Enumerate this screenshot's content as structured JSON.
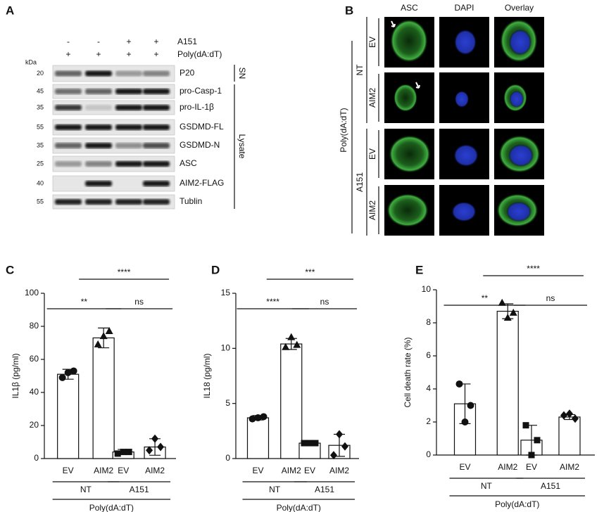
{
  "panel_labels": [
    "A",
    "B",
    "C",
    "D",
    "E"
  ],
  "blot": {
    "treatments": [
      {
        "name": "A151",
        "signs": [
          "-",
          "-",
          "+",
          "+"
        ]
      },
      {
        "name": "Poly(dA:dT)",
        "signs": [
          "+",
          "+",
          "+",
          "+"
        ]
      }
    ],
    "kda_label": "kDa",
    "rows": [
      {
        "marker": "20",
        "label": "P20"
      },
      {
        "marker": "45",
        "label": "pro-Casp-1"
      },
      {
        "marker": "35",
        "label": "pro-IL-1β"
      },
      {
        "marker": "55",
        "label": "GSDMD-FL"
      },
      {
        "marker": "35",
        "label": "GSDMD-N"
      },
      {
        "marker": "25",
        "label": "ASC"
      },
      {
        "marker": "40",
        "label": "AIM2-FLAG"
      },
      {
        "marker": "55",
        "label": "Tublin"
      }
    ],
    "fractions": [
      "SN",
      "Lysate"
    ]
  },
  "microscopy": {
    "columns": [
      "ASC",
      "DAPI",
      "Overlay"
    ],
    "groups": [
      {
        "label": "NT",
        "rows": [
          "EV",
          "AIM2"
        ]
      },
      {
        "label": "A151",
        "rows": [
          "EV",
          "AIM2"
        ]
      }
    ],
    "treatment": "Poly(dA:dT)"
  },
  "chart_data": [
    {
      "type": "bar",
      "y_label": "IL1β (pg/ml)",
      "categories": [
        "EV",
        "AIM2",
        "EV",
        "AIM2"
      ],
      "values": [
        51,
        73,
        4,
        7
      ],
      "errors": [
        3,
        6,
        1.5,
        5
      ],
      "points": [
        [
          49,
          53,
          52
        ],
        [
          69,
          77,
          74
        ],
        [
          3,
          4,
          4
        ],
        [
          5,
          7,
          12
        ]
      ],
      "groups": [
        "NT",
        "A151"
      ],
      "group_label": "Poly(dA:dT)",
      "significance": [
        "**",
        "ns",
        "****"
      ],
      "ylim": [
        0,
        100
      ],
      "yticks": [
        0,
        20,
        40,
        60,
        80,
        100
      ]
    },
    {
      "type": "bar",
      "y_label": "IL18 (pg/ml)",
      "categories": [
        "EV",
        "AIM2",
        "EV",
        "AIM2"
      ],
      "values": [
        3.7,
        10.4,
        1.4,
        1.2
      ],
      "errors": [
        0.2,
        0.5,
        0.1,
        1.0
      ],
      "points": [
        [
          3.6,
          3.8,
          3.7
        ],
        [
          10.1,
          10.3,
          11.0
        ],
        [
          1.4,
          1.4,
          1.4
        ],
        [
          0.3,
          1.1,
          2.2
        ]
      ],
      "groups": [
        "NT",
        "A151"
      ],
      "group_label": "Poly(dA:dT)",
      "significance": [
        "****",
        "ns",
        "***"
      ],
      "ylim": [
        0,
        15
      ],
      "yticks": [
        0,
        5,
        10,
        15
      ]
    },
    {
      "type": "bar",
      "y_label": "Cell death rate (%)",
      "categories": [
        "EV",
        "AIM2",
        "EV",
        "AIM2"
      ],
      "values": [
        3.1,
        8.7,
        0.9,
        2.3
      ],
      "errors": [
        1.2,
        0.45,
        0.9,
        0.15
      ],
      "points": [
        [
          4.3,
          3.0,
          2.0
        ],
        [
          9.2,
          8.6,
          8.3
        ],
        [
          1.8,
          0.9,
          0.0
        ],
        [
          2.4,
          2.2,
          2.5
        ]
      ],
      "groups": [
        "NT",
        "A151"
      ],
      "group_label": "Poly(dA:dT)",
      "significance": [
        "**",
        "ns",
        "****"
      ],
      "ylim": [
        0,
        10
      ],
      "yticks": [
        0,
        2,
        4,
        6,
        8,
        10
      ]
    }
  ]
}
